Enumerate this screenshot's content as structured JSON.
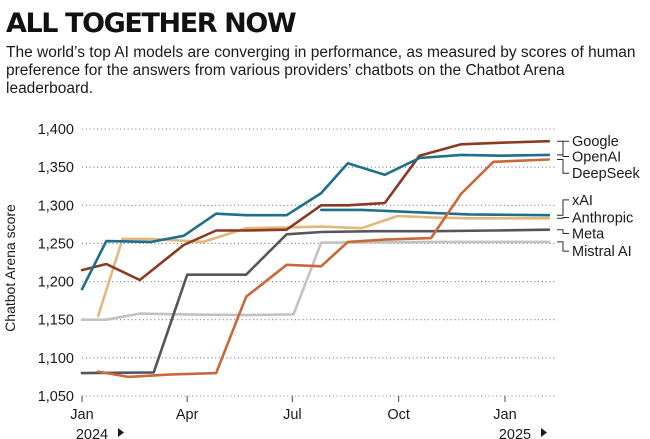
{
  "chart_data": {
    "type": "line",
    "title": "ALL TOGETHER NOW",
    "subtitle": "The world’s top AI models are converging in performance, as measured by scores of human preference for the answers from various providers’ chatbots on the Chatbot Arena leaderboard.",
    "ylabel": "Chatbot Arena score",
    "ylim": [
      1050,
      1400
    ],
    "yticks": [
      1050,
      1100,
      1150,
      1200,
      1250,
      1300,
      1350,
      1400
    ],
    "ytick_labels": [
      "1,050",
      "1,100",
      "1,150",
      "1,200",
      "1,250",
      "1,300",
      "1,350",
      "1,400"
    ],
    "xlim": [
      "2024-01-01",
      "2025-02-15"
    ],
    "xticks": [
      {
        "date": "2024-01-01",
        "label": "Jan"
      },
      {
        "date": "2024-04-01",
        "label": "Apr"
      },
      {
        "date": "2024-07-01",
        "label": "Jul"
      },
      {
        "date": "2024-10-01",
        "label": "Oct"
      },
      {
        "date": "2025-01-01",
        "label": "Jan"
      }
    ],
    "year_labels": [
      {
        "date": "2024-01-01",
        "label": "2024"
      },
      {
        "date": "2025-01-01",
        "label": "2025"
      }
    ],
    "grid": "horizontal-dotted",
    "legend": "right",
    "series": [
      {
        "name": "Google",
        "color": "#1f6e8c",
        "points": [
          [
            "2024-01-01",
            1190
          ],
          [
            "2024-01-22",
            1253
          ],
          [
            "2024-03-01",
            1252
          ],
          [
            "2024-03-29",
            1260
          ],
          [
            "2024-04-26",
            1289
          ],
          [
            "2024-05-22",
            1287
          ],
          [
            "2024-06-26",
            1287
          ],
          [
            "2024-07-26",
            1316
          ],
          [
            "2024-08-18",
            1355
          ],
          [
            "2024-09-19",
            1340
          ],
          [
            "2024-10-19",
            1362
          ],
          [
            "2024-11-24",
            1366
          ],
          [
            "2024-12-29",
            1365
          ],
          [
            "2025-02-08",
            1366
          ]
        ]
      },
      {
        "name": "OpenAI",
        "color": "#8b3a22",
        "points": [
          [
            "2024-01-01",
            1215
          ],
          [
            "2024-01-22",
            1223
          ],
          [
            "2024-02-20",
            1202
          ],
          [
            "2024-03-29",
            1248
          ],
          [
            "2024-04-26",
            1267
          ],
          [
            "2024-05-22",
            1267
          ],
          [
            "2024-06-26",
            1268
          ],
          [
            "2024-07-26",
            1300
          ],
          [
            "2024-08-18",
            1300
          ],
          [
            "2024-09-19",
            1303
          ],
          [
            "2024-10-19",
            1365
          ],
          [
            "2024-11-24",
            1380
          ],
          [
            "2024-12-29",
            1382
          ],
          [
            "2025-02-08",
            1384
          ]
        ]
      },
      {
        "name": "DeepSeek",
        "color": "#c9693a",
        "points": [
          [
            "2024-01-15",
            1082
          ],
          [
            "2024-02-10",
            1075
          ],
          [
            "2024-03-16",
            1078
          ],
          [
            "2024-04-26",
            1080
          ],
          [
            "2024-05-22",
            1180
          ],
          [
            "2024-06-26",
            1222
          ],
          [
            "2024-07-26",
            1220
          ],
          [
            "2024-08-18",
            1252
          ],
          [
            "2024-09-19",
            1255
          ],
          [
            "2024-10-29",
            1257
          ],
          [
            "2024-11-24",
            1315
          ],
          [
            "2024-12-22",
            1357
          ],
          [
            "2025-02-08",
            1360
          ]
        ]
      },
      {
        "name": "xAI",
        "color": "#1f6e8c",
        "points": [
          [
            "2024-07-26",
            1294
          ],
          [
            "2024-08-30",
            1294
          ],
          [
            "2024-09-30",
            1292
          ],
          [
            "2024-10-30",
            1290
          ],
          [
            "2024-12-01",
            1288
          ],
          [
            "2025-02-08",
            1287
          ]
        ]
      },
      {
        "name": "Anthropic",
        "color": "#e3b77a",
        "points": [
          [
            "2024-01-15",
            1155
          ],
          [
            "2024-02-05",
            1256
          ],
          [
            "2024-03-01",
            1256
          ],
          [
            "2024-04-15",
            1252
          ],
          [
            "2024-05-22",
            1270
          ],
          [
            "2024-06-26",
            1271
          ],
          [
            "2024-07-26",
            1272
          ],
          [
            "2024-08-30",
            1270
          ],
          [
            "2024-09-30",
            1286
          ],
          [
            "2024-10-30",
            1284
          ],
          [
            "2024-12-01",
            1283
          ],
          [
            "2025-02-08",
            1283
          ]
        ]
      },
      {
        "name": "Meta",
        "color": "#55555d",
        "points": [
          [
            "2024-01-01",
            1080
          ],
          [
            "2024-03-03",
            1081
          ],
          [
            "2024-04-01",
            1209
          ],
          [
            "2024-05-22",
            1209
          ],
          [
            "2024-06-26",
            1262
          ],
          [
            "2024-07-26",
            1265
          ],
          [
            "2024-09-10",
            1266
          ],
          [
            "2024-10-30",
            1266
          ],
          [
            "2024-12-22",
            1267
          ],
          [
            "2025-02-08",
            1268
          ]
        ]
      },
      {
        "name": "Mistral AI",
        "color": "#c2c2c2",
        "points": [
          [
            "2024-01-01",
            1150
          ],
          [
            "2024-01-22",
            1150
          ],
          [
            "2024-02-20",
            1158
          ],
          [
            "2024-03-29",
            1157
          ],
          [
            "2024-05-22",
            1156
          ],
          [
            "2024-07-02",
            1157
          ],
          [
            "2024-07-26",
            1251
          ],
          [
            "2024-10-30",
            1252
          ],
          [
            "2025-02-08",
            1252
          ]
        ]
      }
    ],
    "legend_entries": [
      {
        "name": "Google",
        "anchor_value": 1366,
        "label_value": 1384
      },
      {
        "name": "OpenAI",
        "anchor_value": 1384,
        "label_value": 1364
      },
      {
        "name": "DeepSeek",
        "anchor_value": 1360,
        "label_value": 1342
      },
      {
        "name": "xAI",
        "anchor_value": 1287,
        "label_value": 1307
      },
      {
        "name": "Anthropic",
        "anchor_value": 1283,
        "label_value": 1284
      },
      {
        "name": "Meta",
        "anchor_value": 1268,
        "label_value": 1263
      },
      {
        "name": "Mistral AI",
        "anchor_value": 1252,
        "label_value": 1240
      }
    ]
  }
}
